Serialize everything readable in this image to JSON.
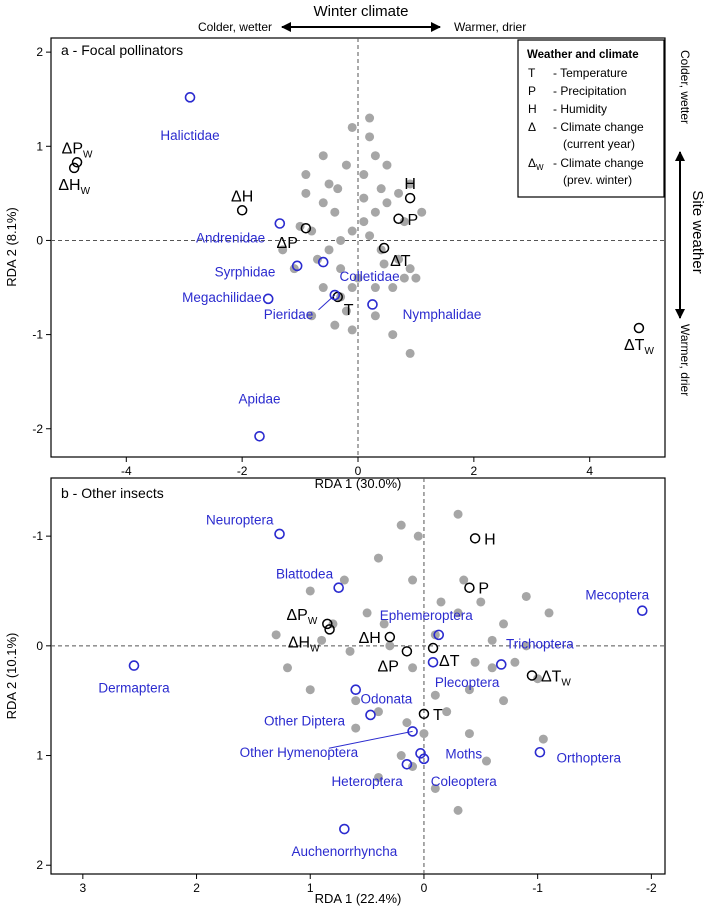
{
  "theme": {
    "axis": "#000000",
    "grid": "#555555",
    "site": "#a6a6a6",
    "weather": "#000000",
    "taxa": "#2b2bcf"
  },
  "top_annotation": {
    "title": "Winter climate",
    "left": "Colder, wetter",
    "right": "Warmer, drier"
  },
  "side_annotation": {
    "title": "Site weather",
    "top": "Colder, wetter",
    "bottom": "Warmer, drier"
  },
  "legend": {
    "title": "Weather and climate",
    "items": [
      {
        "sym": "T",
        "text": "- Temperature"
      },
      {
        "sym": "P",
        "text": "- Precipitation"
      },
      {
        "sym": "H",
        "text": "- Humidity"
      },
      {
        "sym": "Δ",
        "text": "- Climate change",
        "text2": "(current year)"
      },
      {
        "sym": "Δ",
        "sub": "W",
        "text": "- Climate change",
        "text2": "(prev. winter)"
      }
    ]
  },
  "chart_data": [
    {
      "type": "scatter",
      "title": "a - Focal pollinators",
      "xlabel": "RDA 1 (30.0%)",
      "ylabel": "RDA 2 (8.1%)",
      "xlim": [
        -5.3,
        5.3
      ],
      "ylim": [
        -2.3,
        2.15
      ],
      "xticks": [
        -4,
        -2,
        0,
        2,
        4
      ],
      "yticks": [
        -2,
        -1,
        0,
        1,
        2
      ],
      "tick_labels_x": [
        "-4",
        "-2",
        "0",
        "2",
        "4"
      ],
      "tick_labels_y": [
        "-2",
        "-1",
        "0",
        "1",
        "2"
      ],
      "sites": [
        [
          -0.4,
          0.3
        ],
        [
          -0.8,
          0.1
        ],
        [
          -1,
          0.15
        ],
        [
          -0.7,
          -0.2
        ],
        [
          -0.5,
          -0.1
        ],
        [
          -0.3,
          0
        ],
        [
          -0.1,
          0.1
        ],
        [
          0.1,
          0.2
        ],
        [
          0.3,
          0.3
        ],
        [
          0.5,
          0.4
        ],
        [
          0.7,
          0.5
        ],
        [
          0.9,
          0.6
        ],
        [
          0.1,
          0.7
        ],
        [
          -0.2,
          0.8
        ],
        [
          0.3,
          0.9
        ],
        [
          0.5,
          0.8
        ],
        [
          0.2,
          1.1
        ],
        [
          -0.1,
          1.2
        ],
        [
          0.2,
          1.3
        ],
        [
          -0.5,
          0.6
        ],
        [
          -0.6,
          0.4
        ],
        [
          -0.9,
          0.5
        ],
        [
          -1.3,
          -0.1
        ],
        [
          -1.1,
          -0.3
        ],
        [
          -0.3,
          -0.3
        ],
        [
          0,
          -0.4
        ],
        [
          0.3,
          -0.5
        ],
        [
          0.6,
          -0.5
        ],
        [
          0.8,
          -0.4
        ],
        [
          1,
          -0.4
        ],
        [
          0.9,
          -0.3
        ],
        [
          0.7,
          -0.2
        ],
        [
          0.4,
          -0.1
        ],
        [
          0.2,
          0.05
        ],
        [
          -0.1,
          -0.5
        ],
        [
          -0.3,
          -0.6
        ],
        [
          -0.6,
          -0.5
        ],
        [
          -0.8,
          -0.8
        ],
        [
          -0.4,
          -0.9
        ],
        [
          -0.1,
          -0.95
        ],
        [
          0.3,
          -0.8
        ],
        [
          0.6,
          -1
        ],
        [
          0.9,
          -1.2
        ],
        [
          -0.2,
          -0.75
        ],
        [
          0.4,
          0.55
        ],
        [
          -0.9,
          0.7
        ],
        [
          0.8,
          0.2
        ],
        [
          1.1,
          0.3
        ],
        [
          -0.6,
          0.9
        ],
        [
          0.1,
          0.45
        ],
        [
          -0.35,
          0.55
        ],
        [
          0.45,
          -0.25
        ]
      ],
      "weather": [
        {
          "label": "ΔP",
          "sub": "W",
          "x": -4.85,
          "y": 0.83,
          "anchor": "above"
        },
        {
          "label": "ΔH",
          "sub": "W",
          "x": -4.9,
          "y": 0.77,
          "anchor": "below"
        },
        {
          "label": "ΔH",
          "x": -2,
          "y": 0.32,
          "anchor": "above"
        },
        {
          "label": "ΔP",
          "x": -0.9,
          "y": 0.13,
          "anchor": "below-left"
        },
        {
          "label": "H",
          "x": 0.9,
          "y": 0.45,
          "anchor": "above"
        },
        {
          "label": "P",
          "x": 0.7,
          "y": 0.23,
          "anchor": "right"
        },
        {
          "label": "ΔT",
          "x": 0.45,
          "y": -0.08,
          "anchor": "below-right"
        },
        {
          "label": "T",
          "x": -0.35,
          "y": -0.6,
          "anchor": "below-right"
        },
        {
          "label": "ΔT",
          "sub": "W",
          "x": 4.85,
          "y": -0.93,
          "anchor": "below"
        }
      ],
      "taxa": [
        {
          "name": "Halictidae",
          "x": -2.9,
          "y": 1.52,
          "lx": -2.9,
          "ly": 1.12,
          "leader": false
        },
        {
          "name": "Andrenidae",
          "x": -1.35,
          "y": 0.18,
          "lx": -2.2,
          "ly": 0.03,
          "leader": false
        },
        {
          "name": "Syrphidae",
          "x": -1.05,
          "y": -0.27,
          "lx": -1.95,
          "ly": -0.33,
          "leader": false
        },
        {
          "name": "Colletidae",
          "x": -0.6,
          "y": -0.23,
          "lx": 0.2,
          "ly": -0.38,
          "leader": false
        },
        {
          "name": "Megachilidae",
          "x": -1.55,
          "y": -0.62,
          "lx": -2.35,
          "ly": -0.6,
          "leader": false
        },
        {
          "name": "Pieridae",
          "x": -0.4,
          "y": -0.58,
          "lx": -1.2,
          "ly": -0.78,
          "leader": true
        },
        {
          "name": "Nymphalidae",
          "x": 0.25,
          "y": -0.68,
          "lx": 1.45,
          "ly": -0.78,
          "leader": false
        },
        {
          "name": "Apidae",
          "x": -1.7,
          "y": -2.08,
          "lx": -1.7,
          "ly": -1.68,
          "leader": false
        }
      ]
    },
    {
      "type": "scatter",
      "title": "b - Other insects",
      "xlabel": "RDA 1 (22.4%)",
      "ylabel": "RDA 2 (10.1%)",
      "xlim": [
        3.28,
        -2.12
      ],
      "ylim": [
        2.08,
        -1.53
      ],
      "xticks": [
        3,
        2,
        1,
        0,
        -1,
        -2
      ],
      "yticks": [
        -1,
        0,
        1,
        2
      ],
      "tick_labels_x": [
        "3",
        "2",
        "1",
        "0",
        "-1",
        "-2"
      ],
      "tick_labels_y": [
        "-1",
        "0",
        "1",
        "2"
      ],
      "sites": [
        [
          0.2,
          -1.1
        ],
        [
          -0.3,
          -1.2
        ],
        [
          0.4,
          -0.8
        ],
        [
          0.7,
          -0.6
        ],
        [
          1,
          -0.5
        ],
        [
          0.8,
          -0.2
        ],
        [
          0.5,
          -0.3
        ],
        [
          0.3,
          0
        ],
        [
          0.1,
          0.2
        ],
        [
          -0.1,
          -0.1
        ],
        [
          -0.3,
          -0.3
        ],
        [
          -0.5,
          -0.4
        ],
        [
          -0.7,
          -0.2
        ],
        [
          -0.9,
          0
        ],
        [
          -0.6,
          0.2
        ],
        [
          -0.4,
          0.4
        ],
        [
          -0.2,
          0.6
        ],
        [
          0,
          0.8
        ],
        [
          0.2,
          1
        ],
        [
          0.4,
          1.2
        ],
        [
          -0.1,
          1.3
        ],
        [
          0.1,
          1.1
        ],
        [
          -0.4,
          0.8
        ],
        [
          -0.7,
          0.5
        ],
        [
          -1,
          0.3
        ],
        [
          -1.1,
          -0.3
        ],
        [
          -0.9,
          -0.45
        ],
        [
          -0.6,
          -0.05
        ],
        [
          0.9,
          -0.05
        ],
        [
          1.2,
          0.2
        ],
        [
          1.3,
          -0.1
        ],
        [
          1,
          0.4
        ],
        [
          0.6,
          0.5
        ],
        [
          0.4,
          0.6
        ],
        [
          0.15,
          0.7
        ],
        [
          -0.3,
          1.5
        ],
        [
          -0.55,
          1.05
        ],
        [
          0.1,
          -0.6
        ],
        [
          0.35,
          -0.2
        ],
        [
          -0.35,
          -0.6
        ],
        [
          0.05,
          -1
        ],
        [
          -0.15,
          -0.4
        ],
        [
          0.65,
          0.05
        ],
        [
          -0.8,
          0.15
        ],
        [
          -0.1,
          0.45
        ],
        [
          -1.05,
          0.85
        ],
        [
          0.6,
          0.75
        ],
        [
          -0.45,
          0.15
        ]
      ],
      "weather": [
        {
          "label": "H",
          "x": -0.45,
          "y": -0.98,
          "anchor": "right"
        },
        {
          "label": "P",
          "x": -0.4,
          "y": -0.53,
          "anchor": "right"
        },
        {
          "label": "ΔP",
          "sub": "W",
          "x": 0.85,
          "y": -0.2,
          "anchor": "left-above"
        },
        {
          "label": "ΔH",
          "sub": "W",
          "x": 0.83,
          "y": -0.15,
          "anchor": "left-below"
        },
        {
          "label": "ΔH",
          "x": 0.3,
          "y": -0.08,
          "anchor": "left"
        },
        {
          "label": "ΔP",
          "x": 0.15,
          "y": 0.05,
          "anchor": "below-left"
        },
        {
          "label": "ΔT",
          "x": -0.08,
          "y": 0.02,
          "anchor": "below-right"
        },
        {
          "label": "T",
          "x": 0,
          "y": 0.62,
          "anchor": "right"
        },
        {
          "label": "ΔT",
          "sub": "W",
          "x": -0.95,
          "y": 0.27,
          "anchor": "right"
        }
      ],
      "taxa": [
        {
          "name": "Neuroptera",
          "x": 1.27,
          "y": -1.02,
          "lx": 1.62,
          "ly": -1.15,
          "leader": false
        },
        {
          "name": "Blattodea",
          "x": 0.75,
          "y": -0.53,
          "lx": 1.05,
          "ly": -0.66,
          "leader": false
        },
        {
          "name": "Mecoptera",
          "x": -1.92,
          "y": -0.32,
          "lx": -1.7,
          "ly": -0.47,
          "leader": false
        },
        {
          "name": "Ephemeroptera",
          "x": -0.13,
          "y": -0.1,
          "lx": -0.02,
          "ly": -0.28,
          "leader": false
        },
        {
          "name": "Trichoptera",
          "x": -0.68,
          "y": 0.17,
          "lx": -1.02,
          "ly": -0.02,
          "leader": false
        },
        {
          "name": "Dermaptera",
          "x": 2.55,
          "y": 0.18,
          "lx": 2.55,
          "ly": 0.38,
          "leader": false
        },
        {
          "name": "Plecoptera",
          "x": -0.08,
          "y": 0.15,
          "lx": -0.38,
          "ly": 0.33,
          "leader": false
        },
        {
          "name": "Odonata",
          "x": 0.6,
          "y": 0.4,
          "lx": 0.33,
          "ly": 0.48,
          "leader": false
        },
        {
          "name": "Other Diptera",
          "x": 0.47,
          "y": 0.63,
          "lx": 1.05,
          "ly": 0.68,
          "leader": false
        },
        {
          "name": "Other Hymenoptera",
          "x": 0.1,
          "y": 0.78,
          "lx": 1.1,
          "ly": 0.97,
          "leader": true
        },
        {
          "name": "Moths",
          "x": 0.03,
          "y": 0.98,
          "lx": -0.35,
          "ly": 0.98,
          "leader": false
        },
        {
          "name": "Heteroptera",
          "x": 0.15,
          "y": 1.08,
          "lx": 0.5,
          "ly": 1.23,
          "leader": false
        },
        {
          "name": "Coleoptera",
          "x": 0,
          "y": 1.03,
          "lx": -0.35,
          "ly": 1.23,
          "leader": false
        },
        {
          "name": "Orthoptera",
          "x": -1.02,
          "y": 0.97,
          "lx": -1.45,
          "ly": 1.02,
          "leader": false
        },
        {
          "name": "Auchenorrhyncha",
          "x": 0.7,
          "y": 1.67,
          "lx": 0.7,
          "ly": 1.87,
          "leader": false
        }
      ]
    }
  ]
}
